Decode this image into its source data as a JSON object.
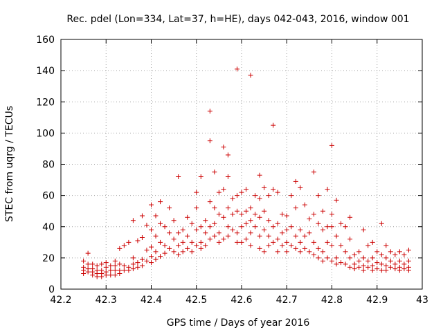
{
  "chart_data": {
    "type": "scatter",
    "title": "Rec. pdel (Lon=334, Lat=37, h=HE), days 042-043, 2016, window 001",
    "xlabel": "GPS time / Days of year 2016",
    "ylabel": "STEC from uqrg / TECUs",
    "xlim": [
      42.2,
      43.0
    ],
    "ylim": [
      0,
      160
    ],
    "xticks": [
      "42.2",
      "42.3",
      "42.4",
      "42.5",
      "42.6",
      "42.7",
      "42.8",
      "42.9",
      "43"
    ],
    "yticks": [
      "0",
      "20",
      "40",
      "60",
      "80",
      "100",
      "120",
      "140",
      "160"
    ],
    "grid": true,
    "marker": "+",
    "color": "#cc0000",
    "series": [
      {
        "name": "STEC",
        "points": [
          [
            42.25,
            18
          ],
          [
            42.25,
            14
          ],
          [
            42.25,
            12
          ],
          [
            42.25,
            10
          ],
          [
            42.26,
            23
          ],
          [
            42.26,
            16
          ],
          [
            42.26,
            13
          ],
          [
            42.26,
            11
          ],
          [
            42.27,
            16
          ],
          [
            42.27,
            13
          ],
          [
            42.27,
            11
          ],
          [
            42.27,
            9
          ],
          [
            42.28,
            15
          ],
          [
            42.28,
            12
          ],
          [
            42.28,
            10
          ],
          [
            42.28,
            8
          ],
          [
            42.29,
            16
          ],
          [
            42.29,
            12
          ],
          [
            42.29,
            10
          ],
          [
            42.29,
            8
          ],
          [
            42.3,
            17
          ],
          [
            42.3,
            14
          ],
          [
            42.3,
            11
          ],
          [
            42.3,
            9
          ],
          [
            42.31,
            15
          ],
          [
            42.31,
            12
          ],
          [
            42.31,
            9
          ],
          [
            42.32,
            18
          ],
          [
            42.32,
            15
          ],
          [
            42.32,
            12
          ],
          [
            42.32,
            9
          ],
          [
            42.33,
            26
          ],
          [
            42.33,
            16
          ],
          [
            42.33,
            12
          ],
          [
            42.33,
            10
          ],
          [
            42.34,
            28
          ],
          [
            42.34,
            15
          ],
          [
            42.34,
            12
          ],
          [
            42.35,
            30
          ],
          [
            42.35,
            14
          ],
          [
            42.35,
            12
          ],
          [
            42.36,
            44
          ],
          [
            42.36,
            20
          ],
          [
            42.36,
            16
          ],
          [
            42.36,
            13
          ],
          [
            42.37,
            31
          ],
          [
            42.37,
            17
          ],
          [
            42.37,
            14
          ],
          [
            42.38,
            47
          ],
          [
            42.38,
            33
          ],
          [
            42.38,
            19
          ],
          [
            42.38,
            15
          ],
          [
            42.39,
            41
          ],
          [
            42.39,
            25
          ],
          [
            42.39,
            18
          ],
          [
            42.4,
            54
          ],
          [
            42.4,
            38
          ],
          [
            42.4,
            27
          ],
          [
            42.4,
            21
          ],
          [
            42.4,
            17
          ],
          [
            42.41,
            47
          ],
          [
            42.41,
            34
          ],
          [
            42.41,
            24
          ],
          [
            42.41,
            19
          ],
          [
            42.42,
            56
          ],
          [
            42.42,
            42
          ],
          [
            42.42,
            30
          ],
          [
            42.42,
            21
          ],
          [
            42.43,
            40
          ],
          [
            42.43,
            28
          ],
          [
            42.43,
            23
          ],
          [
            42.44,
            52
          ],
          [
            42.44,
            36
          ],
          [
            42.44,
            26
          ],
          [
            42.45,
            44
          ],
          [
            42.45,
            32
          ],
          [
            42.45,
            24
          ],
          [
            42.46,
            72
          ],
          [
            42.46,
            36
          ],
          [
            42.46,
            28
          ],
          [
            42.46,
            22
          ],
          [
            42.47,
            38
          ],
          [
            42.47,
            30
          ],
          [
            42.47,
            24
          ],
          [
            42.48,
            46
          ],
          [
            42.48,
            34
          ],
          [
            42.48,
            26
          ],
          [
            42.49,
            42
          ],
          [
            42.49,
            30
          ],
          [
            42.49,
            24
          ],
          [
            42.5,
            62
          ],
          [
            42.5,
            52
          ],
          [
            42.5,
            38
          ],
          [
            42.5,
            28
          ],
          [
            42.51,
            72
          ],
          [
            42.51,
            40
          ],
          [
            42.51,
            30
          ],
          [
            42.51,
            26
          ],
          [
            42.52,
            44
          ],
          [
            42.52,
            36
          ],
          [
            42.52,
            28
          ],
          [
            42.53,
            114
          ],
          [
            42.53,
            95
          ],
          [
            42.53,
            56
          ],
          [
            42.53,
            40
          ],
          [
            42.53,
            32
          ],
          [
            42.54,
            75
          ],
          [
            42.54,
            52
          ],
          [
            42.54,
            42
          ],
          [
            42.54,
            34
          ],
          [
            42.55,
            62
          ],
          [
            42.55,
            48
          ],
          [
            42.55,
            36
          ],
          [
            42.55,
            30
          ],
          [
            42.56,
            91
          ],
          [
            42.56,
            64
          ],
          [
            42.56,
            46
          ],
          [
            42.56,
            32
          ],
          [
            42.57,
            86
          ],
          [
            42.57,
            72
          ],
          [
            42.57,
            52
          ],
          [
            42.57,
            40
          ],
          [
            42.57,
            34
          ],
          [
            42.58,
            58
          ],
          [
            42.58,
            48
          ],
          [
            42.58,
            38
          ],
          [
            42.59,
            141
          ],
          [
            42.59,
            60
          ],
          [
            42.59,
            50
          ],
          [
            42.59,
            36
          ],
          [
            42.59,
            30
          ],
          [
            42.6,
            62
          ],
          [
            42.6,
            48
          ],
          [
            42.6,
            40
          ],
          [
            42.6,
            30
          ],
          [
            42.61,
            64
          ],
          [
            42.61,
            50
          ],
          [
            42.61,
            42
          ],
          [
            42.61,
            32
          ],
          [
            42.62,
            137
          ],
          [
            42.62,
            52
          ],
          [
            42.62,
            44
          ],
          [
            42.62,
            36
          ],
          [
            42.62,
            28
          ],
          [
            42.63,
            60
          ],
          [
            42.63,
            48
          ],
          [
            42.63,
            40
          ],
          [
            42.64,
            73
          ],
          [
            42.64,
            58
          ],
          [
            42.64,
            46
          ],
          [
            42.64,
            34
          ],
          [
            42.64,
            26
          ],
          [
            42.65,
            65
          ],
          [
            42.65,
            50
          ],
          [
            42.65,
            38
          ],
          [
            42.65,
            24
          ],
          [
            42.66,
            60
          ],
          [
            42.66,
            44
          ],
          [
            42.66,
            34
          ],
          [
            42.66,
            28
          ],
          [
            42.67,
            105
          ],
          [
            42.67,
            64
          ],
          [
            42.67,
            40
          ],
          [
            42.67,
            30
          ],
          [
            42.68,
            62
          ],
          [
            42.68,
            42
          ],
          [
            42.68,
            32
          ],
          [
            42.68,
            24
          ],
          [
            42.69,
            48
          ],
          [
            42.69,
            36
          ],
          [
            42.69,
            28
          ],
          [
            42.7,
            47
          ],
          [
            42.7,
            38
          ],
          [
            42.7,
            30
          ],
          [
            42.7,
            24
          ],
          [
            42.71,
            60
          ],
          [
            42.71,
            40
          ],
          [
            42.71,
            28
          ],
          [
            42.72,
            69
          ],
          [
            42.72,
            52
          ],
          [
            42.72,
            34
          ],
          [
            42.72,
            26
          ],
          [
            42.73,
            65
          ],
          [
            42.73,
            38
          ],
          [
            42.73,
            30
          ],
          [
            42.73,
            24
          ],
          [
            42.74,
            54
          ],
          [
            42.74,
            34
          ],
          [
            42.74,
            26
          ],
          [
            42.75,
            45
          ],
          [
            42.75,
            36
          ],
          [
            42.75,
            24
          ],
          [
            42.76,
            75
          ],
          [
            42.76,
            48
          ],
          [
            42.76,
            30
          ],
          [
            42.76,
            22
          ],
          [
            42.77,
            60
          ],
          [
            42.77,
            42
          ],
          [
            42.77,
            26
          ],
          [
            42.77,
            20
          ],
          [
            42.78,
            50
          ],
          [
            42.78,
            38
          ],
          [
            42.78,
            24
          ],
          [
            42.78,
            18
          ],
          [
            42.79,
            64
          ],
          [
            42.79,
            40
          ],
          [
            42.79,
            30
          ],
          [
            42.79,
            20
          ],
          [
            42.8,
            92
          ],
          [
            42.8,
            48
          ],
          [
            42.8,
            40
          ],
          [
            42.8,
            28
          ],
          [
            42.8,
            18
          ],
          [
            42.81,
            57
          ],
          [
            42.81,
            34
          ],
          [
            42.81,
            20
          ],
          [
            42.81,
            16
          ],
          [
            42.82,
            42
          ],
          [
            42.82,
            28
          ],
          [
            42.82,
            17
          ],
          [
            42.83,
            40
          ],
          [
            42.83,
            24
          ],
          [
            42.83,
            16
          ],
          [
            42.84,
            46
          ],
          [
            42.84,
            32
          ],
          [
            42.84,
            20
          ],
          [
            42.84,
            14
          ],
          [
            42.85,
            22
          ],
          [
            42.85,
            16
          ],
          [
            42.85,
            13
          ],
          [
            42.86,
            24
          ],
          [
            42.86,
            18
          ],
          [
            42.86,
            14
          ],
          [
            42.87,
            38
          ],
          [
            42.87,
            20
          ],
          [
            42.87,
            15
          ],
          [
            42.87,
            12
          ],
          [
            42.88,
            28
          ],
          [
            42.88,
            18
          ],
          [
            42.88,
            14
          ],
          [
            42.89,
            30
          ],
          [
            42.89,
            20
          ],
          [
            42.89,
            15
          ],
          [
            42.89,
            12
          ],
          [
            42.9,
            24
          ],
          [
            42.9,
            17
          ],
          [
            42.9,
            13
          ],
          [
            42.91,
            42
          ],
          [
            42.91,
            22
          ],
          [
            42.91,
            16
          ],
          [
            42.91,
            12
          ],
          [
            42.92,
            28
          ],
          [
            42.92,
            20
          ],
          [
            42.92,
            15
          ],
          [
            42.92,
            12
          ],
          [
            42.93,
            24
          ],
          [
            42.93,
            18
          ],
          [
            42.93,
            14
          ],
          [
            42.94,
            22
          ],
          [
            42.94,
            16
          ],
          [
            42.94,
            13
          ],
          [
            42.95,
            24
          ],
          [
            42.95,
            18
          ],
          [
            42.95,
            14
          ],
          [
            42.95,
            12
          ],
          [
            42.96,
            22
          ],
          [
            42.96,
            16
          ],
          [
            42.96,
            13
          ],
          [
            42.97,
            25
          ],
          [
            42.97,
            18
          ],
          [
            42.97,
            14
          ],
          [
            42.97,
            12
          ]
        ]
      }
    ]
  }
}
